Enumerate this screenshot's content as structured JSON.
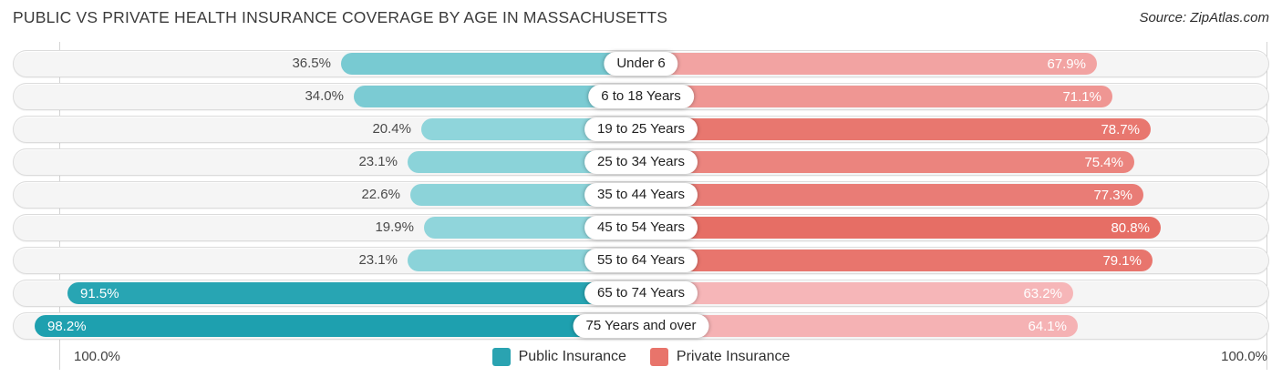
{
  "title": "PUBLIC VS PRIVATE HEALTH INSURANCE COVERAGE BY AGE IN MASSACHUSETTS",
  "source": "Source: ZipAtlas.com",
  "axis": {
    "left_label": "100.0%",
    "right_label": "100.0%"
  },
  "legend": [
    {
      "label": "Public Insurance",
      "color": "#2aa3b1"
    },
    {
      "label": "Private Insurance",
      "color": "#e8746b"
    }
  ],
  "colors": {
    "public": {
      "light": "#90d5db",
      "dark": "#1ea0af"
    },
    "private": {
      "light": "#f6b6b8",
      "dark": "#e66e65"
    },
    "track": "#f5f5f5",
    "track_border": "#dcdcdc"
  },
  "chart_data": {
    "type": "bar",
    "variant": "diverging-horizontal",
    "title": "Public vs Private Health Insurance Coverage by Age in Massachusetts",
    "categories": [
      "Under 6",
      "6 to 18 Years",
      "19 to 25 Years",
      "25 to 34 Years",
      "35 to 44 Years",
      "45 to 54 Years",
      "55 to 64 Years",
      "65 to 74 Years",
      "75 Years and over"
    ],
    "series": [
      {
        "name": "Public Insurance",
        "side": "left",
        "values": [
          36.5,
          34.0,
          20.4,
          23.1,
          22.6,
          19.9,
          23.1,
          91.5,
          98.2
        ]
      },
      {
        "name": "Private Insurance",
        "side": "right",
        "values": [
          67.9,
          71.1,
          78.7,
          75.4,
          77.3,
          80.8,
          79.1,
          63.2,
          64.1
        ]
      }
    ],
    "xlim": [
      0,
      100
    ],
    "value_suffix": "%",
    "legend_position": "bottom-center",
    "grid": "100% marks only"
  }
}
